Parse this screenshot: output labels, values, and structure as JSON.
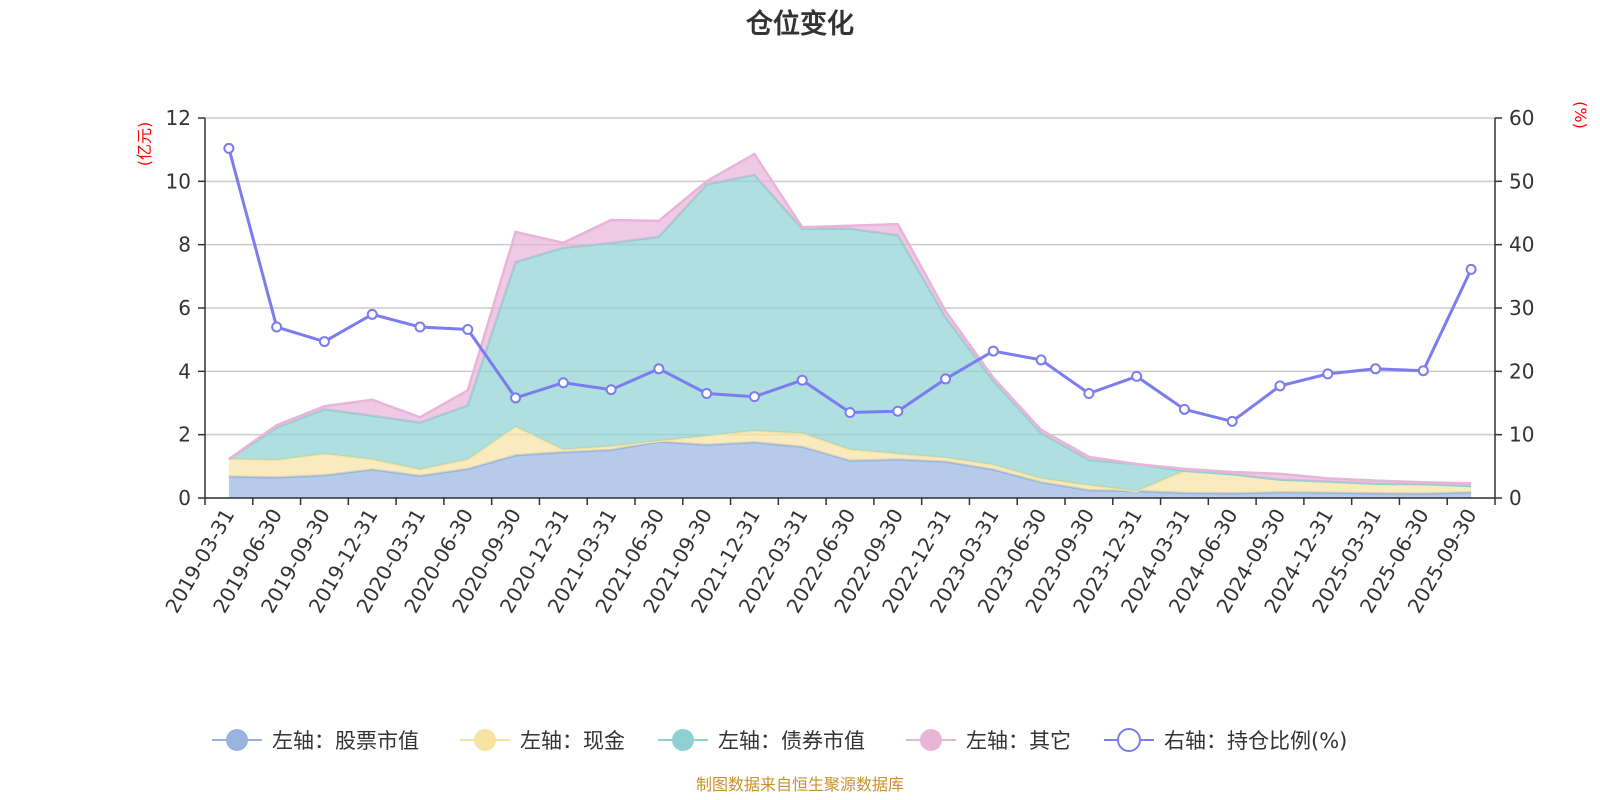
{
  "chart_data": {
    "type": "area",
    "title": "仓位变化",
    "source": "制图数据来自恒生聚源数据库",
    "left_axis": {
      "unit": "(亿元)",
      "ticks": [
        0,
        2,
        4,
        6,
        8,
        10,
        12
      ],
      "ylim": [
        0,
        12
      ]
    },
    "right_axis": {
      "unit": "(%)",
      "ticks": [
        0,
        10,
        20,
        30,
        40,
        50,
        60
      ],
      "ylim": [
        0,
        60
      ]
    },
    "categories": [
      "2019-03-31",
      "2019-06-30",
      "2019-09-30",
      "2019-12-31",
      "2020-03-31",
      "2020-06-30",
      "2020-09-30",
      "2020-12-31",
      "2021-03-31",
      "2021-06-30",
      "2021-09-30",
      "2021-12-31",
      "2022-03-31",
      "2022-06-30",
      "2022-09-30",
      "2022-12-31",
      "2023-03-31",
      "2023-06-30",
      "2023-09-30",
      "2023-12-31",
      "2024-03-31",
      "2024-06-30",
      "2024-09-30",
      "2024-12-31",
      "2025-03-31",
      "2025-06-30",
      "2025-09-30"
    ],
    "series": [
      {
        "name": "左轴：股票市值",
        "axis": "left",
        "stack": true,
        "color": "#97b3e0",
        "values": [
          0.68,
          0.65,
          0.72,
          0.9,
          0.7,
          0.92,
          1.35,
          1.45,
          1.52,
          1.78,
          1.68,
          1.76,
          1.62,
          1.18,
          1.22,
          1.15,
          0.9,
          0.5,
          0.25,
          0.22,
          0.16,
          0.15,
          0.18,
          0.17,
          0.15,
          0.14,
          0.18
        ]
      },
      {
        "name": "左轴：现金",
        "axis": "left",
        "stack": true,
        "color": "#f7e3a1",
        "values": [
          0.55,
          0.55,
          0.68,
          0.32,
          0.2,
          0.3,
          0.9,
          0.08,
          0.12,
          0.02,
          0.28,
          0.36,
          0.42,
          0.35,
          0.18,
          0.12,
          0.15,
          0.12,
          0.15,
          0.0,
          0.7,
          0.6,
          0.4,
          0.35,
          0.3,
          0.3,
          0.2
        ]
      },
      {
        "name": "左轴：债券市值",
        "axis": "left",
        "stack": true,
        "color": "#8fd1d1",
        "values": [
          0.0,
          1.02,
          1.4,
          1.38,
          1.48,
          1.7,
          5.2,
          6.37,
          6.41,
          6.45,
          7.94,
          8.08,
          6.46,
          6.97,
          6.9,
          4.43,
          2.65,
          1.43,
          0.8,
          0.85,
          0.0,
          0.0,
          0.0,
          0.0,
          0.0,
          0.0,
          0.0
        ]
      },
      {
        "name": "左轴：其它",
        "axis": "left",
        "stack": true,
        "color": "#e8b4d8",
        "values": [
          0.0,
          0.08,
          0.1,
          0.5,
          0.17,
          0.48,
          0.95,
          0.16,
          0.73,
          0.5,
          0.1,
          0.66,
          0.05,
          0.1,
          0.35,
          0.2,
          0.1,
          0.1,
          0.1,
          0.0,
          0.06,
          0.07,
          0.18,
          0.1,
          0.1,
          0.06,
          0.08
        ]
      },
      {
        "name": "右轴：持仓比例(%)",
        "axis": "right",
        "stack": false,
        "color": "#7b7cf0",
        "values": [
          55.2,
          27.0,
          24.7,
          29.0,
          27.0,
          26.6,
          15.8,
          18.2,
          17.1,
          20.4,
          16.5,
          16.0,
          18.6,
          13.5,
          13.7,
          18.8,
          23.2,
          21.8,
          16.5,
          19.2,
          14.0,
          12.1,
          17.7,
          19.6,
          20.4,
          20.1,
          36.1
        ]
      }
    ],
    "legend": {
      "position": "bottom-center",
      "items": [
        "左轴：股票市值",
        "左轴：现金",
        "左轴：债券市值",
        "左轴：其它",
        "右轴：持仓比例(%)"
      ]
    }
  }
}
